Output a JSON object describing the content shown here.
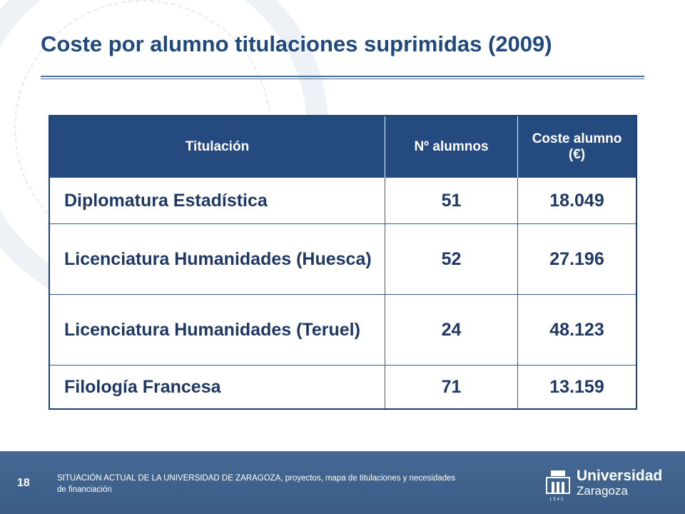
{
  "header": {
    "title": "Coste por alumno titulaciones suprimidas (2009)"
  },
  "table": {
    "columns": [
      "Titulación",
      "Nº alumnos",
      "Coste alumno (€)"
    ],
    "rows": [
      [
        "Diplomatura Estadística",
        "51",
        "18.049"
      ],
      [
        "Licenciatura Humanidades (Huesca)",
        "52",
        "27.196"
      ],
      [
        "Licenciatura Humanidades (Teruel)",
        "24",
        "48.123"
      ],
      [
        "Filología Francesa",
        "71",
        "13.159"
      ]
    ]
  },
  "footer": {
    "page": "18",
    "text": "SITUACIÓN ACTUAL DE LA UNIVERSIDAD DE ZARAGOZA, proyectos, mapa de titulaciones y necesidades de financiación",
    "logo": {
      "name": "Universidad",
      "city": "Zaragoza",
      "year": "1542"
    }
  }
}
